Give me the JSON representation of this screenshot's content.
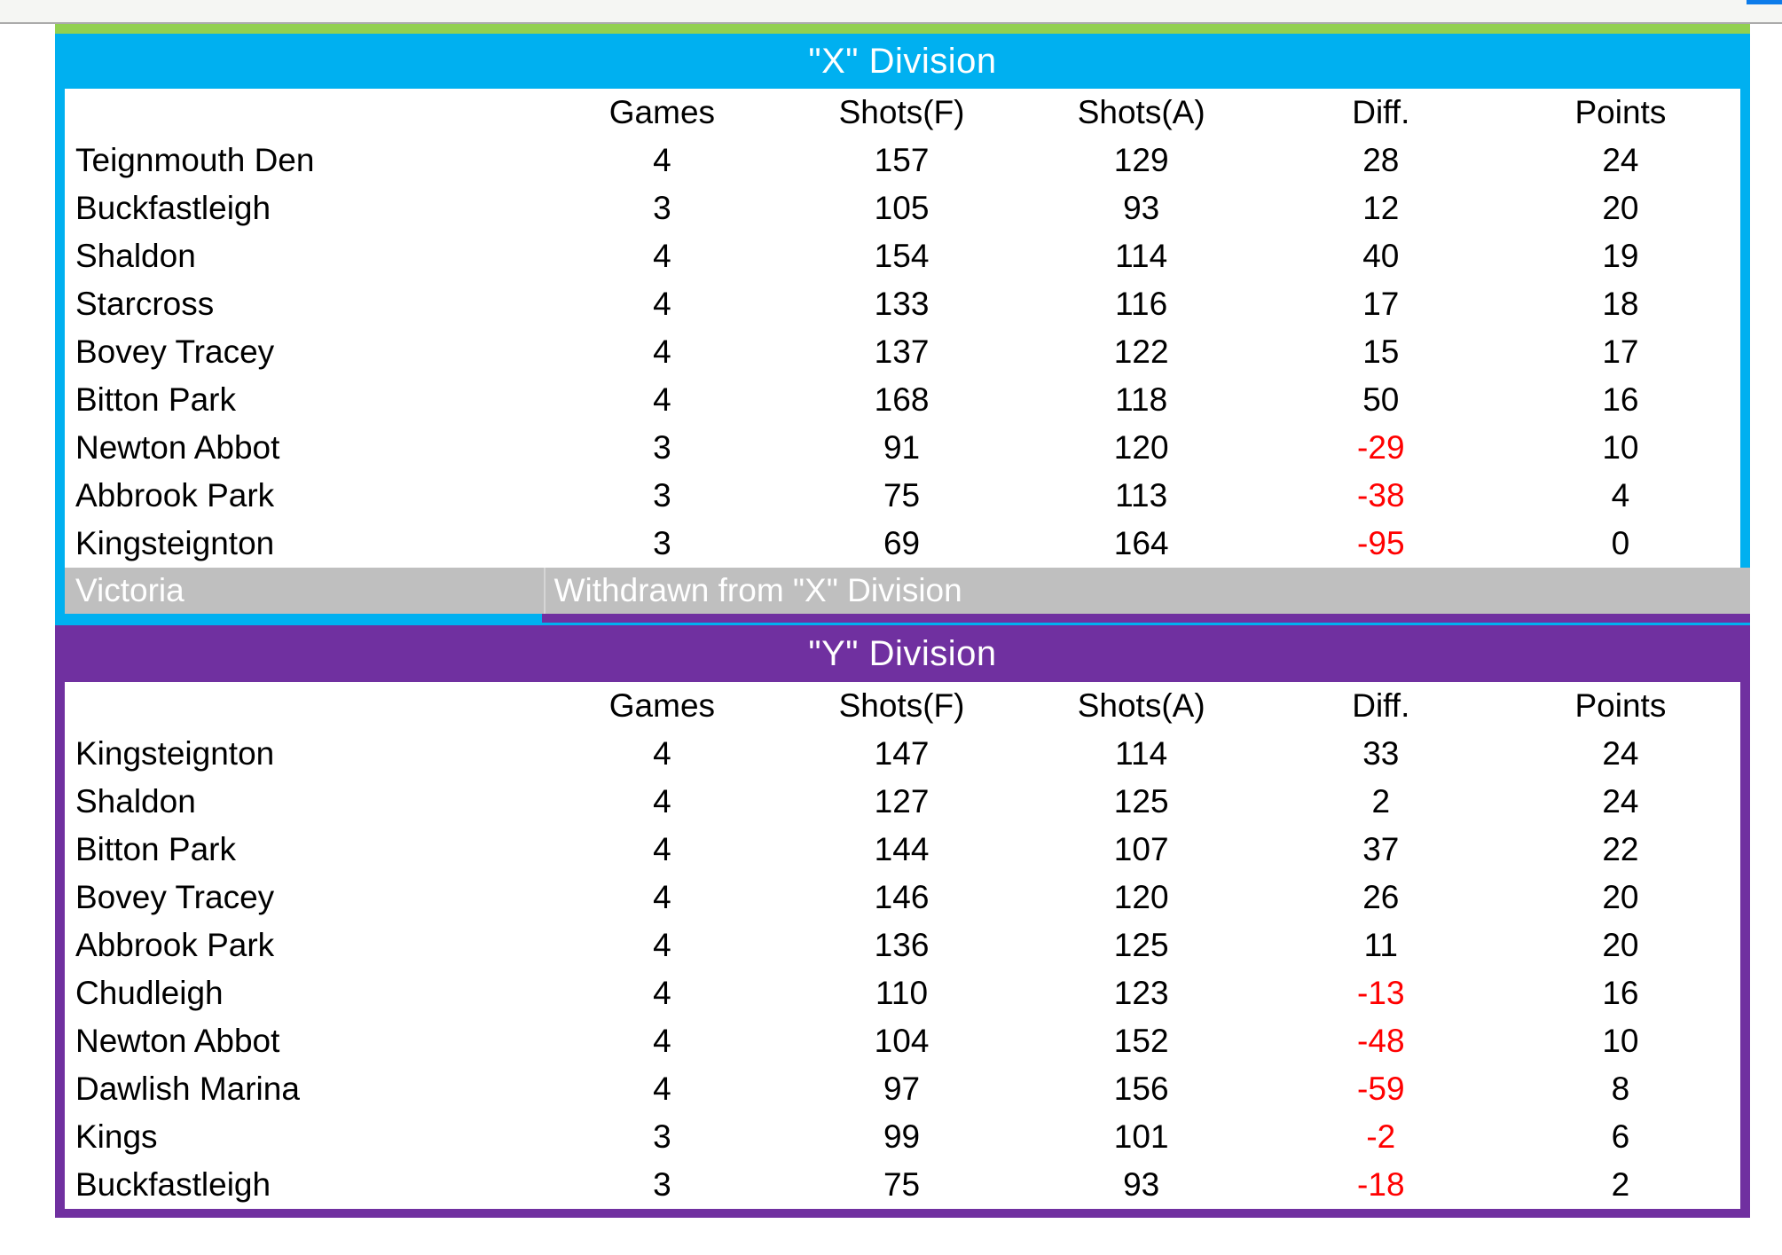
{
  "window": {
    "topbar_color": "#F5F6F3",
    "topbar_border_color": "#ABABAB",
    "scrollbar_fragment_color": "#0C7CEA"
  },
  "accent_bar_color": "#92D050",
  "withdrawn_bar_color": "#BFBFBF",
  "negative_color": "#FF0000",
  "columns": [
    "Games",
    "Shots(F)",
    "Shots(A)",
    "Diff.",
    "Points"
  ],
  "divisions": [
    {
      "title": "\"X\" Division",
      "accent_color": "#00B0F0",
      "rows": [
        {
          "team": "Teignmouth Den",
          "games": "4",
          "shots_f": "157",
          "shots_a": "129",
          "diff": "28",
          "points": "24"
        },
        {
          "team": "Buckfastleigh",
          "games": "3",
          "shots_f": "105",
          "shots_a": "93",
          "diff": "12",
          "points": "20"
        },
        {
          "team": "Shaldon",
          "games": "4",
          "shots_f": "154",
          "shots_a": "114",
          "diff": "40",
          "points": "19"
        },
        {
          "team": "Starcross",
          "games": "4",
          "shots_f": "133",
          "shots_a": "116",
          "diff": "17",
          "points": "18"
        },
        {
          "team": "Bovey Tracey",
          "games": "4",
          "shots_f": "137",
          "shots_a": "122",
          "diff": "15",
          "points": "17"
        },
        {
          "team": "Bitton Park",
          "games": "4",
          "shots_f": "168",
          "shots_a": "118",
          "diff": "50",
          "points": "16"
        },
        {
          "team": "Newton Abbot",
          "games": "3",
          "shots_f": "91",
          "shots_a": "120",
          "diff": "-29",
          "points": "10"
        },
        {
          "team": "Abbrook Park",
          "games": "3",
          "shots_f": "75",
          "shots_a": "113",
          "diff": "-38",
          "points": "4"
        },
        {
          "team": "Kingsteignton",
          "games": "3",
          "shots_f": "69",
          "shots_a": "164",
          "diff": "-95",
          "points": "0"
        }
      ],
      "withdrawn": {
        "team": "Victoria",
        "note": "Withdrawn from \"X\" Division"
      }
    },
    {
      "title": "\"Y\" Division",
      "accent_color": "#7030A0",
      "rows": [
        {
          "team": "Kingsteignton",
          "games": "4",
          "shots_f": "147",
          "shots_a": "114",
          "diff": "33",
          "points": "24"
        },
        {
          "team": "Shaldon",
          "games": "4",
          "shots_f": "127",
          "shots_a": "125",
          "diff": "2",
          "points": "24"
        },
        {
          "team": "Bitton Park",
          "games": "4",
          "shots_f": "144",
          "shots_a": "107",
          "diff": "37",
          "points": "22"
        },
        {
          "team": "Bovey Tracey",
          "games": "4",
          "shots_f": "146",
          "shots_a": "120",
          "diff": "26",
          "points": "20"
        },
        {
          "team": "Abbrook Park",
          "games": "4",
          "shots_f": "136",
          "shots_a": "125",
          "diff": "11",
          "points": "20"
        },
        {
          "team": "Chudleigh",
          "games": "4",
          "shots_f": "110",
          "shots_a": "123",
          "diff": "-13",
          "points": "16"
        },
        {
          "team": "Newton Abbot",
          "games": "4",
          "shots_f": "104",
          "shots_a": "152",
          "diff": "-48",
          "points": "10"
        },
        {
          "team": "Dawlish Marina",
          "games": "4",
          "shots_f": "97",
          "shots_a": "156",
          "diff": "-59",
          "points": "8"
        },
        {
          "team": "Kings",
          "games": "3",
          "shots_f": "99",
          "shots_a": "101",
          "diff": "-2",
          "points": "6"
        },
        {
          "team": "Buckfastleigh",
          "games": "3",
          "shots_f": "75",
          "shots_a": "93",
          "diff": "-18",
          "points": "2"
        }
      ]
    }
  ]
}
